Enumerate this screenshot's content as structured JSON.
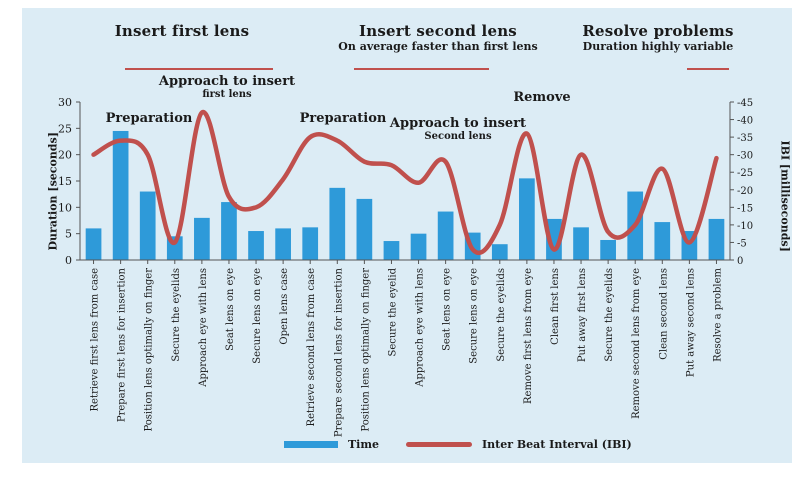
{
  "phases": [
    {
      "title": "Insert first lens",
      "subtitle": ""
    },
    {
      "title": "Insert second lens",
      "subtitle": "On average faster than first lens"
    },
    {
      "title": "Resolve problems",
      "subtitle": "Duration highly variable"
    }
  ],
  "annotations": {
    "approach1": {
      "title": "Approach to insert",
      "subtitle": "first lens"
    },
    "prep1": "Preparation",
    "prep2": "Preparation",
    "approach2": {
      "title": "Approach to insert",
      "subtitle": "Second lens"
    },
    "remove": "Remove"
  },
  "colors": {
    "bar": "#2e9ad9",
    "line": "#c0504d",
    "background": "#dcecf5"
  },
  "chart_data": {
    "type": "bar",
    "categories": [
      "Retrieve first lens from case",
      "Prepare first lens for insertion",
      "Position lens optimally on finger",
      "Secure the eyelids",
      "Approach eye with lens",
      "Seat lens on eye",
      "Secure lens on eye",
      "Open lens case",
      "Retrieve second lens from case",
      "Prepare second lens for insertion",
      "Position lens optimally on finger",
      "Secure the eyelid",
      "Approach eye with lens",
      "Seat lens on eye",
      "Secure lens on eye",
      "Secure the eyelids",
      "Remove first lens from eye",
      "Clean first lens",
      "Put away first lens",
      "Secure the eyelids",
      "Remove second lens from eye",
      "Clean second lens",
      "Put away second lens",
      "Resolve a problem"
    ],
    "series": [
      {
        "name": "Time",
        "type": "bar",
        "axis": "left",
        "values": [
          6,
          24.5,
          13,
          4.5,
          8,
          11,
          5.5,
          6,
          6.2,
          13.7,
          11.6,
          3.6,
          5,
          9.2,
          5.2,
          3,
          15.5,
          7.8,
          6.2,
          3.8,
          13,
          7.2,
          5.5,
          7.8
        ]
      },
      {
        "name": "Inter Beat Interval (IBI)",
        "type": "line",
        "axis": "right",
        "values": [
          -30,
          -34,
          -30,
          -5,
          -42,
          -18,
          -15,
          -23,
          -35,
          -34,
          -28,
          -27,
          -22,
          -28,
          -3,
          -10,
          -36,
          -3,
          -30,
          -8,
          -10,
          -26,
          -5,
          -29
        ]
      }
    ],
    "ylabel": "Duration [seconds]",
    "ylim": [
      0,
      30
    ],
    "yticks": [
      0,
      5,
      10,
      15,
      20,
      25,
      30
    ],
    "y2label": "IBI [milliseconds]",
    "y2lim": [
      -45,
      0
    ],
    "y2ticks": [
      -45,
      -40,
      -35,
      -30,
      -25,
      -20,
      -15,
      -10,
      -5,
      0
    ],
    "legend_position": "bottom"
  }
}
